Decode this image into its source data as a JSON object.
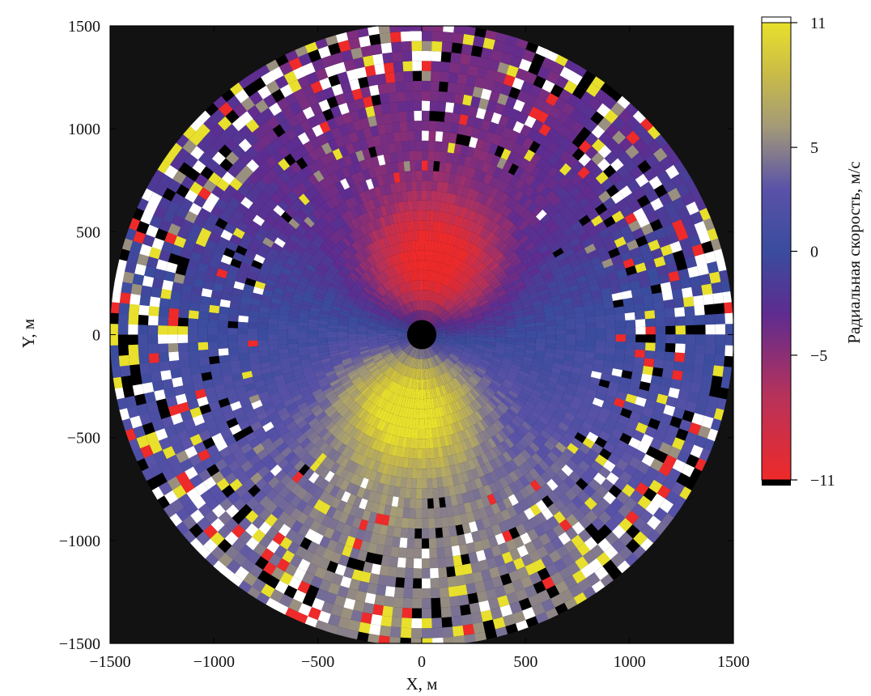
{
  "chart_data": {
    "type": "heatmap",
    "subtype": "polar radial-velocity scan",
    "xlabel": "X, м",
    "ylabel": "Y, м",
    "xlim": [
      -1500,
      1500
    ],
    "ylim": [
      -1500,
      1500
    ],
    "xticks": [
      -1500,
      -1000,
      -500,
      0,
      500,
      1000,
      1500
    ],
    "yticks": [
      -1500,
      -1000,
      -500,
      0,
      500,
      1000,
      1500
    ],
    "xtick_labels": [
      "−1500",
      "−1000",
      "−500",
      "0",
      "500",
      "1000",
      "1500"
    ],
    "ytick_labels": [
      "−1500",
      "−1000",
      "−500",
      "0",
      "500",
      "1000",
      "1500"
    ],
    "scan_radius": 1500,
    "center_mask_radius": 70,
    "background_color": "#121212",
    "colorbar": {
      "label": "Радиальная скорость, м/с",
      "range": [
        -11,
        11
      ],
      "ticks": [
        11,
        5,
        0,
        -5,
        -11
      ],
      "tick_labels": [
        "11",
        "5",
        "0",
        "−5",
        "−11"
      ],
      "stops": [
        {
          "value": -11,
          "color": "#ee2a2a"
        },
        {
          "value": -7,
          "color": "#b8325a"
        },
        {
          "value": -3,
          "color": "#5e2c90"
        },
        {
          "value": 0,
          "color": "#3a4c9e"
        },
        {
          "value": 3,
          "color": "#5a52a8"
        },
        {
          "value": 6,
          "color": "#a39a78"
        },
        {
          "value": 8.5,
          "color": "#c9bb48"
        },
        {
          "value": 11,
          "color": "#e8e02c"
        }
      ],
      "overflow_color_high": "#ffffff",
      "overflow_color_low": "#000000"
    },
    "features": [
      {
        "name": "negative lobe",
        "azimuth_deg": 80,
        "range_m": 340,
        "peak_value": -11
      },
      {
        "name": "positive lobe",
        "azimuth_deg": -100,
        "range_m": 340,
        "peak_value": 10
      }
    ]
  }
}
